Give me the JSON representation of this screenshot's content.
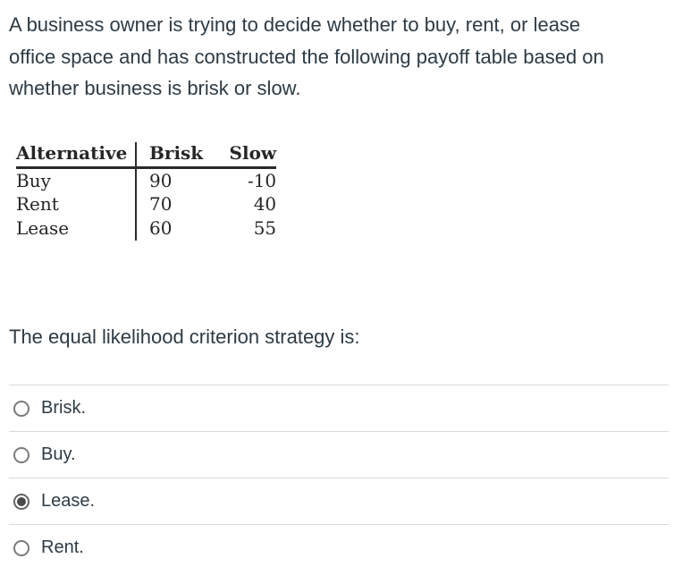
{
  "colors": {
    "body_text": "#2d3b45",
    "table_text": "#262626",
    "table_rule": "#2b2b2b",
    "option_divider": "#d9d9d9",
    "radio_border": "#7b7b7b",
    "radio_selected_dot": "#4a4a4a",
    "background": "#ffffff"
  },
  "prompt": {
    "lines": [
      "A business owner is trying to decide whether to buy, rent, or lease",
      "office space and has constructed the following payoff table based on",
      "whether business is brisk or slow."
    ]
  },
  "payoff_table": {
    "headers": [
      "Alternative",
      "Brisk",
      "Slow"
    ],
    "rows": [
      {
        "alternative": "Buy",
        "brisk": "90",
        "slow": "-10"
      },
      {
        "alternative": "Rent",
        "brisk": "70",
        "slow": "40"
      },
      {
        "alternative": "Lease",
        "brisk": "60",
        "slow": "55"
      }
    ]
  },
  "question": {
    "stem": "The equal likelihood criterion strategy is:"
  },
  "options": [
    {
      "label": "Brisk.",
      "selected": false
    },
    {
      "label": "Buy.",
      "selected": false
    },
    {
      "label": "Lease.",
      "selected": true
    },
    {
      "label": "Rent.",
      "selected": false
    }
  ]
}
